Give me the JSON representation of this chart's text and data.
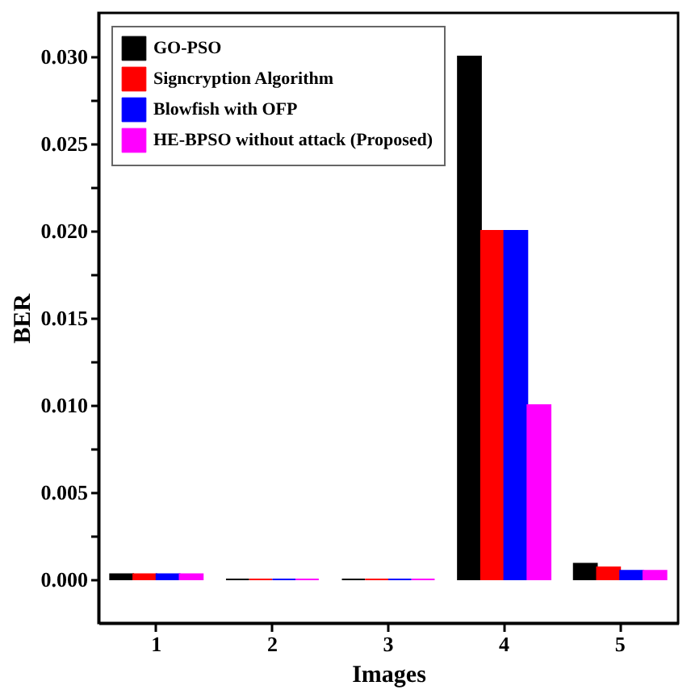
{
  "chart_data": {
    "type": "bar",
    "xlabel": "Images",
    "ylabel": "BER",
    "categories": [
      "1",
      "2",
      "3",
      "4",
      "5"
    ],
    "series": [
      {
        "name": "GO-PSO",
        "color": "#000000",
        "values": [
          0.0003,
          0.0,
          0.0,
          0.03,
          0.0009
        ]
      },
      {
        "name": "Signcryption Algorithm",
        "color": "#ff0000",
        "values": [
          0.0003,
          0.0,
          0.0,
          0.02,
          0.0007
        ]
      },
      {
        "name": "Blowfish with OFP",
        "color": "#0000ff",
        "values": [
          0.0003,
          0.0,
          0.0,
          0.02,
          0.0005
        ]
      },
      {
        "name": "HE-BPSO without attack (Proposed)",
        "color": "#ff00ff",
        "values": [
          0.0003,
          0.0,
          0.0,
          0.01,
          0.0005
        ]
      }
    ],
    "ylim": [
      -0.0025,
      0.0325
    ],
    "yticks": [
      {
        "value": 0.0,
        "label": "0.000"
      },
      {
        "value": 0.0025,
        "label": null
      },
      {
        "value": 0.005,
        "label": "0.005"
      },
      {
        "value": 0.0075,
        "label": null
      },
      {
        "value": 0.01,
        "label": "0.010"
      },
      {
        "value": 0.0125,
        "label": null
      },
      {
        "value": 0.015,
        "label": "0.015"
      },
      {
        "value": 0.0175,
        "label": null
      },
      {
        "value": 0.02,
        "label": "0.020"
      },
      {
        "value": 0.0225,
        "label": null
      },
      {
        "value": 0.025,
        "label": "0.025"
      },
      {
        "value": 0.0275,
        "label": null
      },
      {
        "value": 0.03,
        "label": "0.030"
      }
    ],
    "legend": "top left",
    "grid": false
  }
}
